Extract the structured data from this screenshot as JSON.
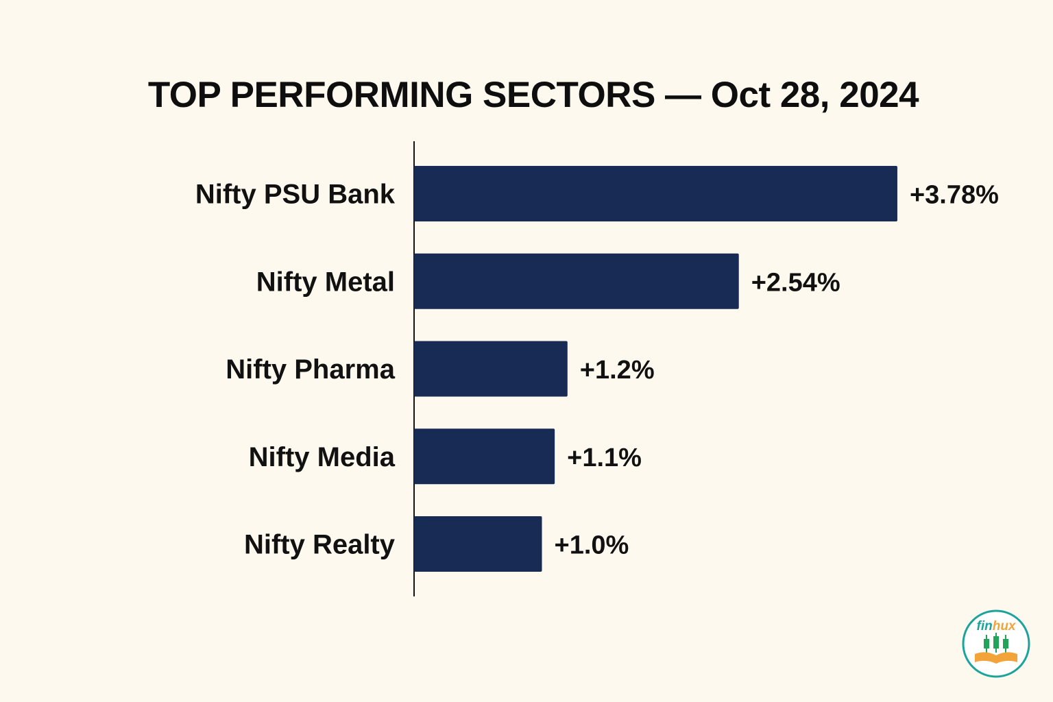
{
  "chart_data": {
    "type": "bar",
    "orientation": "horizontal",
    "title": "TOP PERFORMING SECTORS — Oct 28, 2024",
    "categories": [
      "Nifty PSU Bank",
      "Nifty Metal",
      "Nifty Pharma",
      "Nifty Media",
      "Nifty Realty"
    ],
    "values": [
      3.78,
      2.54,
      1.2,
      1.1,
      1.0
    ],
    "value_labels": [
      "+3.78%",
      "+2.54%",
      "+1.2%",
      "+1.1%",
      "+1.0%"
    ],
    "unit": "%",
    "xlabel": "",
    "ylabel": "",
    "grid": false,
    "legend": "none",
    "bar_color": "#172B55"
  },
  "logo": {
    "text_fin": "fin",
    "text_hux": "hux",
    "ring_color": "#1BA39C",
    "fin_color": "#1BA39C",
    "hux_color": "#F2A33A",
    "candle_color": "#22A35A",
    "book_color": "#F2A33A"
  }
}
